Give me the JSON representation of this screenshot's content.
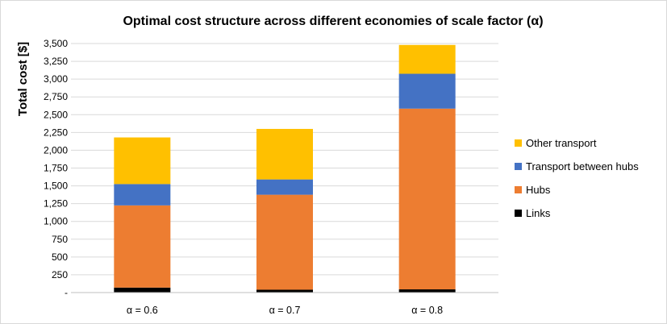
{
  "chart_data": {
    "type": "bar",
    "stacked": true,
    "title": "Optimal cost structure across different economies of scale factor (α)",
    "xlabel": "",
    "ylabel": "Total cost [$]",
    "ylim": [
      0,
      3500
    ],
    "yticks": [
      0,
      250,
      500,
      750,
      1000,
      1250,
      1500,
      1750,
      2000,
      2250,
      2500,
      2750,
      3000,
      3250,
      3500
    ],
    "ytick_labels": [
      "-",
      "250",
      "500",
      "750",
      "1,000",
      "1,250",
      "1,500",
      "1,750",
      "2,000",
      "2,250",
      "2,500",
      "2,750",
      "3,000",
      "3,250",
      "3,500"
    ],
    "categories": [
      "α = 0.6",
      "α = 0.7",
      "α = 0.8"
    ],
    "series": [
      {
        "name": "Links",
        "color": "#000000",
        "values": [
          70,
          40,
          45
        ]
      },
      {
        "name": "Hubs",
        "color": "#ed7d31",
        "values": [
          1155,
          1335,
          2540
        ]
      },
      {
        "name": "Transport between hubs",
        "color": "#4472c4",
        "values": [
          300,
          215,
          490
        ]
      },
      {
        "name": "Other transport",
        "color": "#ffc000",
        "values": [
          655,
          710,
          405
        ]
      }
    ],
    "legend_position": "right",
    "legend_order": [
      "Other transport",
      "Transport between hubs",
      "Hubs",
      "Links"
    ],
    "grid": true
  }
}
